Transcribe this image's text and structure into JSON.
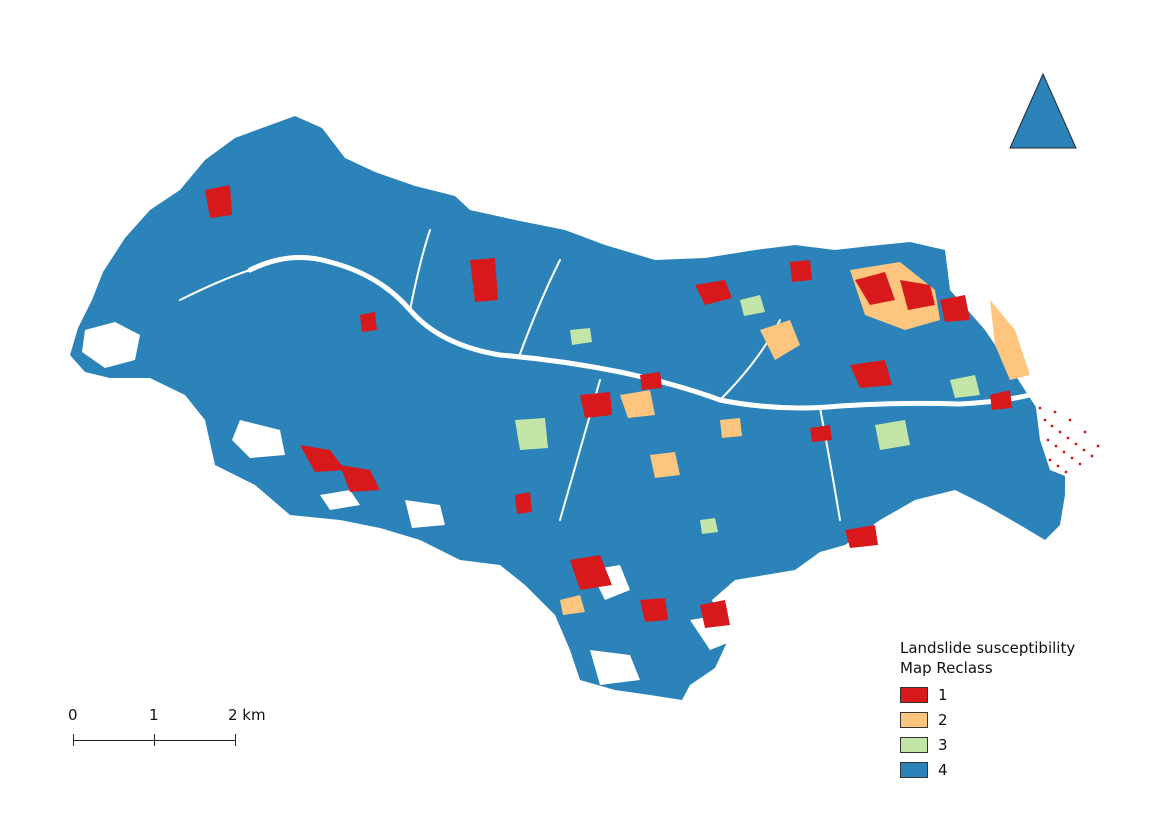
{
  "map": {
    "legend": {
      "title_line1": "Landslide susceptibility",
      "title_line2": "Map Reclass",
      "classes": [
        {
          "label": "1",
          "color": "#d7191c"
        },
        {
          "label": "2",
          "color": "#fdc57e"
        },
        {
          "label": "3",
          "color": "#c4e5a8"
        },
        {
          "label": "4",
          "color": "#2b83ba"
        }
      ]
    },
    "scalebar": {
      "labels": [
        "0",
        "1",
        "2 km"
      ]
    },
    "north_arrow": {
      "icon": "north-arrow-icon",
      "color": "#2b83ba"
    }
  }
}
